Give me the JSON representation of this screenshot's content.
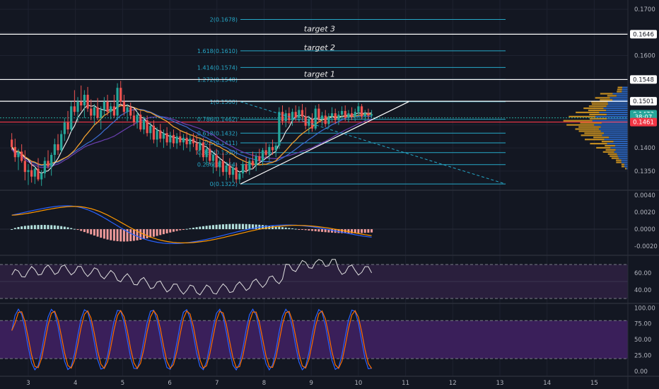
{
  "chart_data": [
    {
      "panel": "price",
      "type": "candlestick",
      "y_ticks": [
        "0.1700",
        "0.1600",
        "0.1400",
        "0.1350"
      ],
      "ylim": [
        0.131,
        0.172
      ],
      "x_ticks": [
        "3",
        "4",
        "5",
        "6",
        "7",
        "8",
        "9",
        "10",
        "11",
        "12",
        "13",
        "14",
        "15"
      ],
      "xlim": [
        2.55,
        15.55
      ],
      "price_tags": [
        {
          "value": "0.1646",
          "bg": "#ffffff",
          "fg": "#131722",
          "y": 0.1646
        },
        {
          "value": "0.1548",
          "bg": "#ffffff",
          "fg": "#131722",
          "y": 0.1548
        },
        {
          "value": "0.1501",
          "bg": "#ffffff",
          "fg": "#131722",
          "y": 0.1501
        },
        {
          "value": "0.1473",
          "bg": "#26a69a",
          "fg": "#ffffff",
          "y": 0.1473
        },
        {
          "value": "38:07",
          "bg": "#26a69a",
          "fg": "#ffffff",
          "y": 0.14665
        },
        {
          "value": "0.1461",
          "bg": "#f23645",
          "fg": "#ffffff",
          "y": 0.1456
        }
      ],
      "target_lines": [
        {
          "label": "target 3",
          "y": 0.1646
        },
        {
          "label": "target 2",
          "y": 0.161
        },
        {
          "label": "target 1",
          "y": 0.1548
        }
      ],
      "fib_levels": [
        {
          "label": "2(0.1678)",
          "y": 0.1678
        },
        {
          "label": "1.618(0.1610)",
          "y": 0.161
        },
        {
          "label": "1.414(0.1574)",
          "y": 0.1574
        },
        {
          "label": "1.272(0.1548)",
          "y": 0.1548
        },
        {
          "label": "1(0.1500)",
          "y": 0.15
        },
        {
          "label": "0.786(0.1462)",
          "y": 0.1462
        },
        {
          "label": "0.618(0.1432)",
          "y": 0.1432
        },
        {
          "label": "0.5(0.1411)",
          "y": 0.1411
        },
        {
          "label": "0.382(0.1390)",
          "y": 0.139
        },
        {
          "label": "0.236(0.1364)",
          "y": 0.1364
        },
        {
          "label": "0(0.1322)",
          "y": 0.1322
        }
      ],
      "candles": [
        {
          "x": 2.65,
          "o": 0.1418,
          "h": 0.1432,
          "l": 0.1395,
          "c": 0.1402
        },
        {
          "x": 2.72,
          "o": 0.1402,
          "h": 0.142,
          "l": 0.137,
          "c": 0.138
        },
        {
          "x": 2.79,
          "o": 0.138,
          "h": 0.1398,
          "l": 0.1352,
          "c": 0.1392
        },
        {
          "x": 2.86,
          "o": 0.1392,
          "h": 0.1408,
          "l": 0.1368,
          "c": 0.1372
        },
        {
          "x": 2.93,
          "o": 0.1372,
          "h": 0.1395,
          "l": 0.133,
          "c": 0.1348
        },
        {
          "x": 3.0,
          "o": 0.1348,
          "h": 0.1365,
          "l": 0.132,
          "c": 0.1352
        },
        {
          "x": 3.07,
          "o": 0.1352,
          "h": 0.1372,
          "l": 0.1325,
          "c": 0.1338
        },
        {
          "x": 3.14,
          "o": 0.1338,
          "h": 0.136,
          "l": 0.1322,
          "c": 0.1355
        },
        {
          "x": 3.21,
          "o": 0.1355,
          "h": 0.1378,
          "l": 0.1328,
          "c": 0.1332
        },
        {
          "x": 3.28,
          "o": 0.1332,
          "h": 0.1352,
          "l": 0.1318,
          "c": 0.1345
        },
        {
          "x": 3.35,
          "o": 0.1345,
          "h": 0.138,
          "l": 0.1335,
          "c": 0.1372
        },
        {
          "x": 3.42,
          "o": 0.1372,
          "h": 0.1395,
          "l": 0.1355,
          "c": 0.136
        },
        {
          "x": 3.49,
          "o": 0.136,
          "h": 0.139,
          "l": 0.134,
          "c": 0.1385
        },
        {
          "x": 3.56,
          "o": 0.1385,
          "h": 0.142,
          "l": 0.137,
          "c": 0.1408
        },
        {
          "x": 3.63,
          "o": 0.1408,
          "h": 0.143,
          "l": 0.1385,
          "c": 0.1395
        },
        {
          "x": 3.7,
          "o": 0.1395,
          "h": 0.1438,
          "l": 0.139,
          "c": 0.143
        },
        {
          "x": 3.77,
          "o": 0.143,
          "h": 0.1465,
          "l": 0.1415,
          "c": 0.1455
        },
        {
          "x": 3.84,
          "o": 0.1455,
          "h": 0.148,
          "l": 0.143,
          "c": 0.144
        },
        {
          "x": 3.91,
          "o": 0.144,
          "h": 0.15,
          "l": 0.1435,
          "c": 0.149
        },
        {
          "x": 3.98,
          "o": 0.149,
          "h": 0.1525,
          "l": 0.147,
          "c": 0.1478
        },
        {
          "x": 4.05,
          "o": 0.1478,
          "h": 0.151,
          "l": 0.1455,
          "c": 0.15
        },
        {
          "x": 4.12,
          "o": 0.15,
          "h": 0.1535,
          "l": 0.148,
          "c": 0.1492
        },
        {
          "x": 4.19,
          "o": 0.1492,
          "h": 0.1525,
          "l": 0.1465,
          "c": 0.1515
        },
        {
          "x": 4.26,
          "o": 0.1515,
          "h": 0.1532,
          "l": 0.1478,
          "c": 0.1485
        },
        {
          "x": 4.33,
          "o": 0.1485,
          "h": 0.1505,
          "l": 0.146,
          "c": 0.147
        },
        {
          "x": 4.4,
          "o": 0.147,
          "h": 0.1495,
          "l": 0.145,
          "c": 0.1488
        },
        {
          "x": 4.47,
          "o": 0.1488,
          "h": 0.1508,
          "l": 0.146,
          "c": 0.1465
        },
        {
          "x": 4.54,
          "o": 0.1465,
          "h": 0.149,
          "l": 0.144,
          "c": 0.1482
        },
        {
          "x": 4.61,
          "o": 0.1482,
          "h": 0.151,
          "l": 0.147,
          "c": 0.15
        },
        {
          "x": 4.68,
          "o": 0.15,
          "h": 0.1515,
          "l": 0.147,
          "c": 0.1478
        },
        {
          "x": 4.75,
          "o": 0.1478,
          "h": 0.1498,
          "l": 0.1462,
          "c": 0.149
        },
        {
          "x": 4.82,
          "o": 0.149,
          "h": 0.1515,
          "l": 0.1465,
          "c": 0.147
        },
        {
          "x": 4.89,
          "o": 0.147,
          "h": 0.154,
          "l": 0.146,
          "c": 0.153
        },
        {
          "x": 4.96,
          "o": 0.153,
          "h": 0.1545,
          "l": 0.149,
          "c": 0.15
        },
        {
          "x": 5.03,
          "o": 0.15,
          "h": 0.1515,
          "l": 0.147,
          "c": 0.1478
        },
        {
          "x": 5.1,
          "o": 0.1478,
          "h": 0.1495,
          "l": 0.1458,
          "c": 0.1488
        },
        {
          "x": 5.17,
          "o": 0.1488,
          "h": 0.1498,
          "l": 0.1462,
          "c": 0.147
        },
        {
          "x": 5.24,
          "o": 0.147,
          "h": 0.1485,
          "l": 0.1448,
          "c": 0.1455
        },
        {
          "x": 5.31,
          "o": 0.1455,
          "h": 0.1478,
          "l": 0.1442,
          "c": 0.1472
        },
        {
          "x": 5.38,
          "o": 0.1472,
          "h": 0.148,
          "l": 0.1435,
          "c": 0.144
        },
        {
          "x": 5.45,
          "o": 0.144,
          "h": 0.1468,
          "l": 0.143,
          "c": 0.146
        },
        {
          "x": 5.52,
          "o": 0.146,
          "h": 0.147,
          "l": 0.1425,
          "c": 0.1432
        },
        {
          "x": 5.59,
          "o": 0.1432,
          "h": 0.1455,
          "l": 0.1418,
          "c": 0.1448
        },
        {
          "x": 5.66,
          "o": 0.1448,
          "h": 0.146,
          "l": 0.141,
          "c": 0.1418
        },
        {
          "x": 5.73,
          "o": 0.1418,
          "h": 0.1445,
          "l": 0.1402,
          "c": 0.1438
        },
        {
          "x": 5.8,
          "o": 0.1438,
          "h": 0.1452,
          "l": 0.1412,
          "c": 0.142
        },
        {
          "x": 5.87,
          "o": 0.142,
          "h": 0.144,
          "l": 0.14,
          "c": 0.1432
        },
        {
          "x": 5.94,
          "o": 0.1432,
          "h": 0.1445,
          "l": 0.1405,
          "c": 0.1412
        },
        {
          "x": 6.01,
          "o": 0.1412,
          "h": 0.1435,
          "l": 0.1398,
          "c": 0.1428
        },
        {
          "x": 6.08,
          "o": 0.1428,
          "h": 0.144,
          "l": 0.1402,
          "c": 0.141
        },
        {
          "x": 6.15,
          "o": 0.141,
          "h": 0.1432,
          "l": 0.1398,
          "c": 0.1425
        },
        {
          "x": 6.22,
          "o": 0.1425,
          "h": 0.1438,
          "l": 0.1405,
          "c": 0.1412
        },
        {
          "x": 6.29,
          "o": 0.1412,
          "h": 0.143,
          "l": 0.1395,
          "c": 0.1422
        },
        {
          "x": 6.36,
          "o": 0.1422,
          "h": 0.1435,
          "l": 0.14,
          "c": 0.1408
        },
        {
          "x": 6.43,
          "o": 0.1408,
          "h": 0.1428,
          "l": 0.1392,
          "c": 0.142
        },
        {
          "x": 6.5,
          "o": 0.142,
          "h": 0.1432,
          "l": 0.1402,
          "c": 0.141
        },
        {
          "x": 6.57,
          "o": 0.141,
          "h": 0.1428,
          "l": 0.1385,
          "c": 0.1395
        },
        {
          "x": 6.64,
          "o": 0.1395,
          "h": 0.142,
          "l": 0.138,
          "c": 0.1412
        },
        {
          "x": 6.71,
          "o": 0.1412,
          "h": 0.1422,
          "l": 0.1372,
          "c": 0.138
        },
        {
          "x": 6.78,
          "o": 0.138,
          "h": 0.1405,
          "l": 0.1362,
          "c": 0.1398
        },
        {
          "x": 6.85,
          "o": 0.1398,
          "h": 0.1415,
          "l": 0.1365,
          "c": 0.1372
        },
        {
          "x": 6.92,
          "o": 0.1372,
          "h": 0.1392,
          "l": 0.1345,
          "c": 0.1385
        },
        {
          "x": 6.99,
          "o": 0.1385,
          "h": 0.1398,
          "l": 0.135,
          "c": 0.1358
        },
        {
          "x": 7.06,
          "o": 0.1358,
          "h": 0.138,
          "l": 0.1338,
          "c": 0.1372
        },
        {
          "x": 7.13,
          "o": 0.1372,
          "h": 0.139,
          "l": 0.134,
          "c": 0.1348
        },
        {
          "x": 7.2,
          "o": 0.1348,
          "h": 0.137,
          "l": 0.133,
          "c": 0.1362
        },
        {
          "x": 7.27,
          "o": 0.1362,
          "h": 0.1378,
          "l": 0.1335,
          "c": 0.1342
        },
        {
          "x": 7.34,
          "o": 0.1342,
          "h": 0.1365,
          "l": 0.1326,
          "c": 0.1358
        },
        {
          "x": 7.41,
          "o": 0.1358,
          "h": 0.1368,
          "l": 0.1324,
          "c": 0.1332
        },
        {
          "x": 7.48,
          "o": 0.1332,
          "h": 0.135,
          "l": 0.1322,
          "c": 0.1345
        },
        {
          "x": 7.55,
          "o": 0.1345,
          "h": 0.1372,
          "l": 0.1335,
          "c": 0.1365
        },
        {
          "x": 7.62,
          "o": 0.1365,
          "h": 0.138,
          "l": 0.1345,
          "c": 0.1352
        },
        {
          "x": 7.69,
          "o": 0.1352,
          "h": 0.1378,
          "l": 0.1342,
          "c": 0.1372
        },
        {
          "x": 7.76,
          "o": 0.1372,
          "h": 0.1392,
          "l": 0.1355,
          "c": 0.1362
        },
        {
          "x": 7.83,
          "o": 0.1362,
          "h": 0.1388,
          "l": 0.135,
          "c": 0.1382
        },
        {
          "x": 7.9,
          "o": 0.1382,
          "h": 0.1398,
          "l": 0.1365,
          "c": 0.1372
        },
        {
          "x": 7.97,
          "o": 0.1372,
          "h": 0.14,
          "l": 0.1362,
          "c": 0.1395
        },
        {
          "x": 8.04,
          "o": 0.1395,
          "h": 0.1412,
          "l": 0.1378,
          "c": 0.1385
        },
        {
          "x": 8.11,
          "o": 0.1385,
          "h": 0.1408,
          "l": 0.1372,
          "c": 0.1402
        },
        {
          "x": 8.18,
          "o": 0.1402,
          "h": 0.1418,
          "l": 0.1385,
          "c": 0.1395
        },
        {
          "x": 8.25,
          "o": 0.1395,
          "h": 0.1412,
          "l": 0.138,
          "c": 0.1405
        },
        {
          "x": 8.32,
          "o": 0.1405,
          "h": 0.1488,
          "l": 0.1398,
          "c": 0.1478
        },
        {
          "x": 8.39,
          "o": 0.1478,
          "h": 0.1492,
          "l": 0.145,
          "c": 0.1458
        },
        {
          "x": 8.46,
          "o": 0.1458,
          "h": 0.1482,
          "l": 0.1445,
          "c": 0.1475
        },
        {
          "x": 8.53,
          "o": 0.1475,
          "h": 0.1488,
          "l": 0.1452,
          "c": 0.146
        },
        {
          "x": 8.6,
          "o": 0.146,
          "h": 0.1485,
          "l": 0.1448,
          "c": 0.1478
        },
        {
          "x": 8.67,
          "o": 0.1478,
          "h": 0.1492,
          "l": 0.1458,
          "c": 0.1465
        },
        {
          "x": 8.74,
          "o": 0.1465,
          "h": 0.149,
          "l": 0.1455,
          "c": 0.1482
        },
        {
          "x": 8.81,
          "o": 0.1482,
          "h": 0.1495,
          "l": 0.146,
          "c": 0.1468
        },
        {
          "x": 8.88,
          "o": 0.1468,
          "h": 0.1488,
          "l": 0.144,
          "c": 0.1448
        },
        {
          "x": 8.95,
          "o": 0.1448,
          "h": 0.147,
          "l": 0.143,
          "c": 0.1462
        },
        {
          "x": 9.02,
          "o": 0.1462,
          "h": 0.1475,
          "l": 0.1435,
          "c": 0.1442
        },
        {
          "x": 9.09,
          "o": 0.1442,
          "h": 0.1492,
          "l": 0.1438,
          "c": 0.1485
        },
        {
          "x": 9.16,
          "o": 0.1485,
          "h": 0.1495,
          "l": 0.1455,
          "c": 0.1462
        },
        {
          "x": 9.23,
          "o": 0.1462,
          "h": 0.1478,
          "l": 0.1448,
          "c": 0.147
        },
        {
          "x": 9.3,
          "o": 0.147,
          "h": 0.1482,
          "l": 0.1445,
          "c": 0.1452
        },
        {
          "x": 9.37,
          "o": 0.1452,
          "h": 0.1475,
          "l": 0.1442,
          "c": 0.1468
        },
        {
          "x": 9.44,
          "o": 0.1468,
          "h": 0.1488,
          "l": 0.1455,
          "c": 0.1475
        },
        {
          "x": 9.51,
          "o": 0.1475,
          "h": 0.1485,
          "l": 0.1452,
          "c": 0.146
        },
        {
          "x": 9.58,
          "o": 0.146,
          "h": 0.148,
          "l": 0.145,
          "c": 0.1472
        },
        {
          "x": 9.65,
          "o": 0.1472,
          "h": 0.149,
          "l": 0.1462,
          "c": 0.148
        },
        {
          "x": 9.72,
          "o": 0.148,
          "h": 0.1492,
          "l": 0.1458,
          "c": 0.1465
        },
        {
          "x": 9.79,
          "o": 0.1465,
          "h": 0.1482,
          "l": 0.1455,
          "c": 0.1475
        },
        {
          "x": 9.86,
          "o": 0.1475,
          "h": 0.1488,
          "l": 0.146,
          "c": 0.1468
        },
        {
          "x": 9.93,
          "o": 0.1468,
          "h": 0.1485,
          "l": 0.1458,
          "c": 0.1478
        },
        {
          "x": 10.0,
          "o": 0.1478,
          "h": 0.1498,
          "l": 0.1465,
          "c": 0.149
        },
        {
          "x": 10.07,
          "o": 0.149,
          "h": 0.1495,
          "l": 0.1462,
          "c": 0.1468
        },
        {
          "x": 10.14,
          "o": 0.1468,
          "h": 0.1482,
          "l": 0.1458,
          "c": 0.1475
        },
        {
          "x": 10.21,
          "o": 0.1475,
          "h": 0.1485,
          "l": 0.1462,
          "c": 0.147
        },
        {
          "x": 10.28,
          "o": 0.147,
          "h": 0.1482,
          "l": 0.1465,
          "c": 0.1473
        }
      ]
    },
    {
      "panel": "macd",
      "type": "line",
      "y_ticks": [
        "0.0040",
        "0.0020",
        "0.0000",
        "-0.0020"
      ],
      "ylim": [
        -0.003,
        0.0045
      ]
    },
    {
      "panel": "rsi",
      "type": "line",
      "y_ticks": [
        "60.00",
        "40.00"
      ],
      "ylim": [
        25,
        80
      ]
    },
    {
      "panel": "stochastic",
      "type": "line",
      "y_ticks": [
        "100.00",
        "75.00",
        "50.00",
        "25.00",
        "0.00"
      ],
      "ylim": [
        -8,
        106
      ]
    }
  ],
  "colors": {
    "background": "#131722",
    "fib": "#26a8c8",
    "up": "#26a69a",
    "down": "#ef5350",
    "white": "#ffffff",
    "ma_orange": "#f0a030",
    "ma_blue": "#3d6fd6",
    "rsi_band": "#2a1f3d",
    "stoch_band": "#3a1f5a"
  }
}
